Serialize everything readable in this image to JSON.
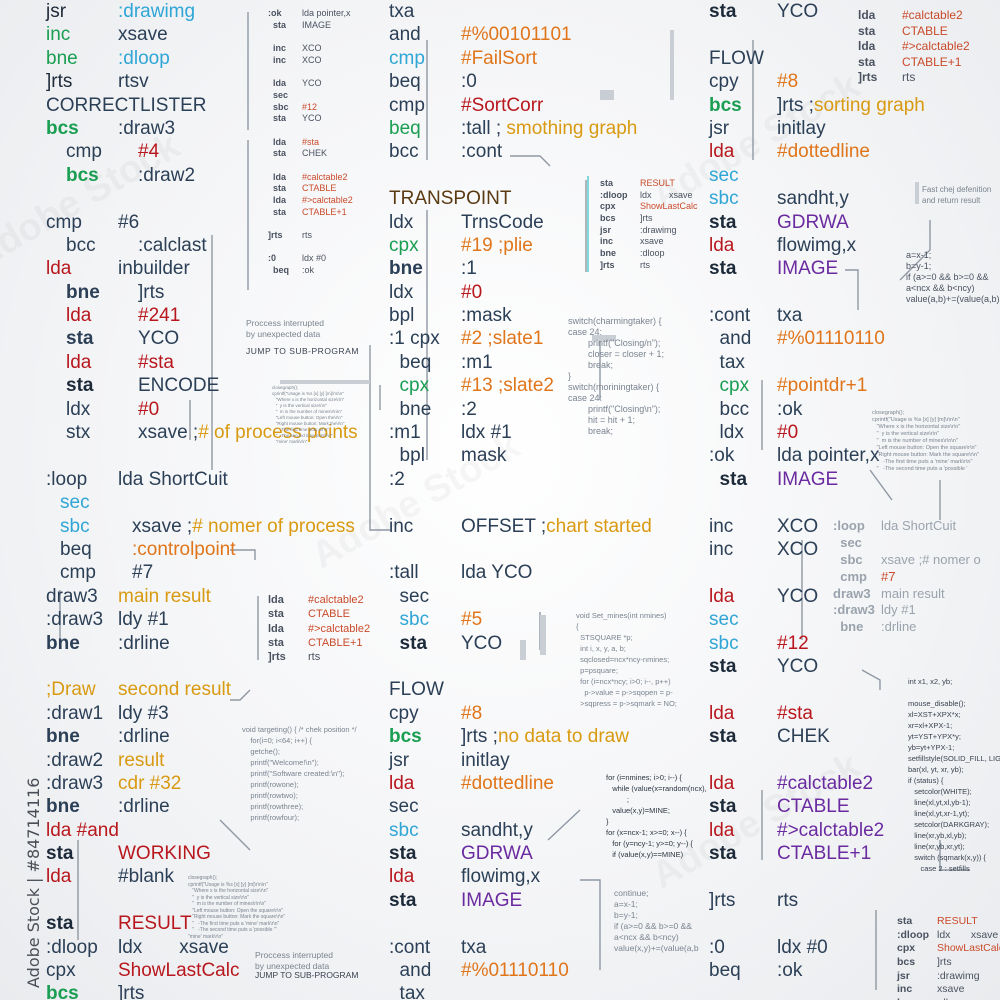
{
  "col1": [
    {
      "t": "jsr",
      "c": "c-dk",
      "v": ":drawimg",
      "vc": "c-cy",
      "i": ""
    },
    {
      "t": "inc",
      "c": "c-gr",
      "v": "xsave",
      "vc": "c-nv",
      "i": ""
    },
    {
      "t": "bne",
      "c": "c-gr",
      "v": ":dloop",
      "vc": "c-cy",
      "i": ""
    },
    {
      "t": "]rts",
      "c": "c-dk",
      "v": "rtsv",
      "vc": "c-nv",
      "i": ""
    },
    {
      "t": "CORRECTLISTER",
      "c": "c-nv",
      "v": "",
      "vc": "",
      "i": ""
    },
    {
      "t": "bcs",
      "c": "c-gr b",
      "v": ":draw3",
      "vc": "c-nv",
      "i": ""
    },
    {
      "t": "cmp",
      "c": "c-nv",
      "v": "#4",
      "vc": "c-rd",
      "i": "i1"
    },
    {
      "t": "bcs",
      "c": "c-gr b",
      "v": ":draw2",
      "vc": "c-nv",
      "i": "i1"
    },
    {
      "t": "",
      "c": "",
      "v": "",
      "vc": "",
      "i": ""
    },
    {
      "t": "cmp",
      "c": "c-nv",
      "v": "#6",
      "vc": "c-nv",
      "i": ""
    },
    {
      "t": "bcc",
      "c": "c-nv",
      "v": ":calclast",
      "vc": "c-nv",
      "i": "i1"
    },
    {
      "t": "lda",
      "c": "c-rd",
      "v": "inbuilder",
      "vc": "c-nv",
      "i": ""
    },
    {
      "t": "bne",
      "c": "c-nv b",
      "v": "]rts",
      "vc": "c-nv",
      "i": "i1"
    },
    {
      "t": "lda",
      "c": "c-rd",
      "v": "#241",
      "vc": "c-rd",
      "i": "i1"
    },
    {
      "t": "sta",
      "c": "c-nv b",
      "v": "YCO",
      "vc": "c-nv",
      "i": "i1"
    },
    {
      "t": "lda",
      "c": "c-rd",
      "v": "#sta",
      "vc": "c-rd",
      "i": "i1"
    },
    {
      "t": "sta",
      "c": "c-dk b",
      "v": "ENCODE",
      "vc": "c-nv",
      "i": "i1"
    },
    {
      "t": "ldx",
      "c": "c-nv",
      "v": "#0",
      "vc": "c-rd",
      "i": "i1"
    },
    {
      "t": "stx",
      "c": "c-nv",
      "v": "xsave ;# of process points",
      "vc": "c-nv",
      "hl": "# of process points",
      "i": "i1"
    },
    {
      "t": "",
      "c": "",
      "v": "",
      "vc": "",
      "i": ""
    },
    {
      "t": ":loop",
      "c": "c-nv",
      "v": "lda ShortCuit",
      "vc": "c-nv",
      "i": ""
    },
    {
      "t": "sec",
      "c": "c-cy",
      "v": "",
      "vc": "",
      "i": "i2"
    },
    {
      "t": "sbc",
      "c": "c-cy",
      "v": "xsave ;# nomer of process",
      "vc": "c-nv",
      "hl": "# nomer of process",
      "i": "i2"
    },
    {
      "t": "beq",
      "c": "c-nv",
      "v": ":controlpoint",
      "vc": "c-or",
      "i": "i2"
    },
    {
      "t": "cmp",
      "c": "c-nv",
      "v": "#7",
      "vc": "c-nv",
      "i": "i2"
    },
    {
      "t": "draw3",
      "c": "c-nv",
      "v": "main result",
      "vc": "c-ye",
      "i": ""
    },
    {
      "t": ":draw3",
      "c": "c-nv",
      "v": "ldy #1",
      "vc": "c-nv",
      "i": ""
    },
    {
      "t": "bne",
      "c": "c-nv b",
      "v": ":drline",
      "vc": "c-nv",
      "i": ""
    },
    {
      "t": "",
      "c": "",
      "v": "",
      "vc": "",
      "i": ""
    },
    {
      "t": ";Draw",
      "c": "c-ye",
      "v": "second result",
      "vc": "c-ye",
      "i": ""
    },
    {
      "t": ":draw1",
      "c": "c-nv",
      "v": "ldy #3",
      "vc": "c-nv",
      "i": ""
    },
    {
      "t": "bne",
      "c": "c-nv b",
      "v": ":drline",
      "vc": "c-nv",
      "i": ""
    },
    {
      "t": ":draw2",
      "c": "c-nv",
      "v": "result",
      "vc": "c-ye",
      "i": ""
    },
    {
      "t": ":draw3",
      "c": "c-nv",
      "v": "cdr #32",
      "vc": "c-ye",
      "i": ""
    },
    {
      "t": "bne",
      "c": "c-nv b",
      "v": ":drline",
      "vc": "c-nv",
      "i": ""
    },
    {
      "t": "lda #and",
      "c": "c-rd",
      "v": "",
      "vc": "",
      "i": ""
    },
    {
      "t": "sta",
      "c": "c-dk b",
      "v": "WORKING",
      "vc": "c-rd",
      "i": ""
    },
    {
      "t": "lda",
      "c": "c-rd",
      "v": "#blank",
      "vc": "c-nv",
      "i": ""
    },
    {
      "t": "",
      "c": "",
      "v": "",
      "vc": "",
      "i": ""
    },
    {
      "t": "sta",
      "c": "c-dk b",
      "v": "RESULT",
      "vc": "c-rd",
      "i": ""
    },
    {
      "t": ":dloop",
      "c": "c-nv",
      "v": "ldx       xsave",
      "vc": "c-nv",
      "i": ""
    },
    {
      "t": "cpx",
      "c": "c-nv",
      "v": "ShowLastCalc",
      "vc": "c-rd",
      "i": ""
    },
    {
      "t": "bcs",
      "c": "c-gr b",
      "v": "]rts",
      "vc": "c-nv",
      "i": ""
    }
  ],
  "col2": [
    {
      "t": "txa",
      "c": "c-nv",
      "v": "",
      "vc": ""
    },
    {
      "t": "and",
      "c": "c-nv",
      "v": "#%00101101",
      "vc": "c-or"
    },
    {
      "t": "cmp",
      "c": "c-cy",
      "v": "#FailSort",
      "vc": "c-or"
    },
    {
      "t": "beq",
      "c": "c-nv",
      "v": ":0",
      "vc": "c-nv"
    },
    {
      "t": "cmp",
      "c": "c-nv",
      "v": "#SortCorr",
      "vc": "c-rd"
    },
    {
      "t": "beq",
      "c": "c-gr",
      "v": ":tall ; smothing graph",
      "vc": "c-nv",
      "hl": "smothing graph"
    },
    {
      "t": "bcc",
      "c": "c-nv",
      "v": ":cont",
      "vc": "c-nv"
    },
    {
      "t": "",
      "c": "",
      "v": "",
      "vc": ""
    },
    {
      "t": "TRANSPOINT",
      "c": "c-br",
      "v": "",
      "vc": ""
    },
    {
      "t": "ldx",
      "c": "c-nv",
      "v": "TrnsCode",
      "vc": "c-nv"
    },
    {
      "t": "cpx",
      "c": "c-gr",
      "v": "#19 ;plie",
      "vc": "c-or"
    },
    {
      "t": "bne",
      "c": "c-nv b",
      "v": ":1",
      "vc": "c-nv"
    },
    {
      "t": "ldx",
      "c": "c-nv",
      "v": "#0",
      "vc": "c-rd"
    },
    {
      "t": "bpl",
      "c": "c-nv",
      "v": ":mask",
      "vc": "c-nv"
    },
    {
      "t": ":1 cpx",
      "c": "c-nv",
      "v": "#2 ;slate1",
      "vc": "c-or"
    },
    {
      "t": "  beq",
      "c": "c-nv",
      "v": ":m1",
      "vc": "c-nv"
    },
    {
      "t": "  cpx",
      "c": "c-gr",
      "v": "#13 ;slate2",
      "vc": "c-or"
    },
    {
      "t": "  bne",
      "c": "c-nv",
      "v": ":2",
      "vc": "c-nv"
    },
    {
      "t": ":m1",
      "c": "c-nv",
      "v": "ldx #1",
      "vc": "c-nv"
    },
    {
      "t": "  bpl",
      "c": "c-nv",
      "v": "mask",
      "vc": "c-nv"
    },
    {
      "t": ":2",
      "c": "c-nv",
      "v": "",
      "vc": ""
    },
    {
      "t": "",
      "c": "",
      "v": "",
      "vc": ""
    },
    {
      "t": "inc",
      "c": "c-nv",
      "v": "OFFSET ;chart started",
      "vc": "c-nv",
      "hl": "chart started"
    },
    {
      "t": "",
      "c": "",
      "v": "",
      "vc": ""
    },
    {
      "t": ":tall",
      "c": "c-nv",
      "v": "lda YCO",
      "vc": "c-nv"
    },
    {
      "t": "  sec",
      "c": "c-nv",
      "v": "",
      "vc": ""
    },
    {
      "t": "  sbc",
      "c": "c-cy",
      "v": "#5",
      "vc": "c-or"
    },
    {
      "t": "  sta",
      "c": "c-dk b",
      "v": "YCO",
      "vc": "c-nv"
    },
    {
      "t": "",
      "c": "",
      "v": "",
      "vc": ""
    },
    {
      "t": "FLOW",
      "c": "c-nv",
      "v": "",
      "vc": ""
    },
    {
      "t": "cpy",
      "c": "c-nv",
      "v": "#8",
      "vc": "c-or"
    },
    {
      "t": "bcs",
      "c": "c-gr b",
      "v": "]rts ;no data to draw",
      "vc": "c-nv",
      "hl": "no data to draw"
    },
    {
      "t": "jsr",
      "c": "c-nv",
      "v": "initlay",
      "vc": "c-nv"
    },
    {
      "t": "lda",
      "c": "c-rd",
      "v": "#dottedline",
      "vc": "c-or"
    },
    {
      "t": "sec",
      "c": "c-nv",
      "v": "",
      "vc": ""
    },
    {
      "t": "sbc",
      "c": "c-cy",
      "v": "sandht,y",
      "vc": "c-nv"
    },
    {
      "t": "sta",
      "c": "c-dk b",
      "v": "GDRWA",
      "vc": "c-pu"
    },
    {
      "t": "lda",
      "c": "c-rd",
      "v": "flowimg,x",
      "vc": "c-nv"
    },
    {
      "t": "sta",
      "c": "c-dk b",
      "v": "IMAGE",
      "vc": "c-pu"
    },
    {
      "t": "",
      "c": "",
      "v": "",
      "vc": ""
    },
    {
      "t": ":cont",
      "c": "c-nv",
      "v": "txa",
      "vc": "c-nv"
    },
    {
      "t": "  and",
      "c": "c-nv",
      "v": "#%01110110",
      "vc": "c-or"
    },
    {
      "t": "  tax",
      "c": "c-nv",
      "v": "",
      "vc": ""
    }
  ],
  "col3": [
    {
      "t": "sta",
      "c": "c-dk b",
      "v": "YCO",
      "vc": "c-nv"
    },
    {
      "t": "",
      "c": "",
      "v": "",
      "vc": ""
    },
    {
      "t": "FLOW",
      "c": "c-nv",
      "v": "",
      "vc": ""
    },
    {
      "t": "cpy",
      "c": "c-nv",
      "v": "#8",
      "vc": "c-or"
    },
    {
      "t": "bcs",
      "c": "c-gr b",
      "v": "]rts ;sorting graph",
      "vc": "c-nv",
      "hl": "sorting graph"
    },
    {
      "t": "jsr",
      "c": "c-nv",
      "v": "initlay",
      "vc": "c-nv"
    },
    {
      "t": "lda",
      "c": "c-rd",
      "v": "#dottedline",
      "vc": "c-or"
    },
    {
      "t": "sec",
      "c": "c-cy",
      "v": "",
      "vc": ""
    },
    {
      "t": "sbc",
      "c": "c-cy",
      "v": "sandht,y",
      "vc": "c-nv"
    },
    {
      "t": "sta",
      "c": "c-dk b",
      "v": "GDRWA",
      "vc": "c-pu"
    },
    {
      "t": "lda",
      "c": "c-rd",
      "v": "flowimg,x",
      "vc": "c-nv"
    },
    {
      "t": "sta",
      "c": "c-dk b",
      "v": "IMAGE",
      "vc": "c-pu"
    },
    {
      "t": "",
      "c": "",
      "v": "",
      "vc": ""
    },
    {
      "t": ":cont",
      "c": "c-nv",
      "v": "txa",
      "vc": "c-nv"
    },
    {
      "t": "  and",
      "c": "c-nv",
      "v": "#%01110110",
      "vc": "c-or"
    },
    {
      "t": "  tax",
      "c": "c-nv",
      "v": "",
      "vc": ""
    },
    {
      "t": "  cpx",
      "c": "c-gr",
      "v": "#pointdr+1",
      "vc": "c-or"
    },
    {
      "t": "  bcc",
      "c": "c-nv",
      "v": ":ok",
      "vc": "c-nv"
    },
    {
      "t": "  ldx",
      "c": "c-nv",
      "v": "#0",
      "vc": "c-rd"
    },
    {
      "t": ":ok",
      "c": "c-nv",
      "v": "lda pointer,x",
      "vc": "c-nv"
    },
    {
      "t": "  sta",
      "c": "c-dk b",
      "v": "IMAGE",
      "vc": "c-pu"
    },
    {
      "t": "",
      "c": "",
      "v": "",
      "vc": ""
    },
    {
      "t": "inc",
      "c": "c-nv",
      "v": "XCO",
      "vc": "c-nv"
    },
    {
      "t": "inc",
      "c": "c-nv",
      "v": "XCO",
      "vc": "c-nv"
    },
    {
      "t": "",
      "c": "",
      "v": "",
      "vc": ""
    },
    {
      "t": "lda",
      "c": "c-rd",
      "v": "YCO",
      "vc": "c-nv"
    },
    {
      "t": "sec",
      "c": "c-cy",
      "v": "",
      "vc": ""
    },
    {
      "t": "sbc",
      "c": "c-cy",
      "v": "#12",
      "vc": "c-rd"
    },
    {
      "t": "sta",
      "c": "c-dk b",
      "v": "YCO",
      "vc": "c-nv"
    },
    {
      "t": "",
      "c": "",
      "v": "",
      "vc": ""
    },
    {
      "t": "lda",
      "c": "c-rd",
      "v": "#sta",
      "vc": "c-rd"
    },
    {
      "t": "sta",
      "c": "c-dk b",
      "v": "CHEK",
      "vc": "c-nv"
    },
    {
      "t": "",
      "c": "",
      "v": "",
      "vc": ""
    },
    {
      "t": "lda",
      "c": "c-rd",
      "v": "#calctable2",
      "vc": "c-pu"
    },
    {
      "t": "sta",
      "c": "c-dk b",
      "v": "CTABLE",
      "vc": "c-pu"
    },
    {
      "t": "lda",
      "c": "c-rd",
      "v": "#>calctable2",
      "vc": "c-pu"
    },
    {
      "t": "sta",
      "c": "c-dk b",
      "v": "CTABLE+1",
      "vc": "c-pu"
    },
    {
      "t": "",
      "c": "",
      "v": "",
      "vc": ""
    },
    {
      "t": "]rts",
      "c": "c-nv",
      "v": "rts",
      "vc": "c-nv"
    },
    {
      "t": "",
      "c": "",
      "v": "",
      "vc": ""
    },
    {
      "t": ":0",
      "c": "c-nv",
      "v": "ldx #0",
      "vc": "c-nv"
    },
    {
      "t": "beq",
      "c": "c-nv",
      "v": ":ok",
      "vc": "c-nv"
    }
  ],
  "mini_top": [
    {
      "a": ":ok",
      "b": "lda pointer,x"
    },
    {
      "a": "  sta",
      "b": "IMAGE"
    },
    {
      "a": "",
      "b": ""
    },
    {
      "a": "  inc",
      "b": "XCO"
    },
    {
      "a": "  inc",
      "b": "XCO"
    },
    {
      "a": "",
      "b": ""
    },
    {
      "a": "  lda",
      "b": "YCO"
    },
    {
      "a": "  sec",
      "b": ""
    },
    {
      "a": "  sbc",
      "b": "#12"
    },
    {
      "a": "  sta",
      "b": "YCO"
    },
    {
      "a": "",
      "b": ""
    },
    {
      "a": "  lda",
      "b": "#sta"
    },
    {
      "a": "  sta",
      "b": "CHEK"
    },
    {
      "a": "",
      "b": ""
    },
    {
      "a": "  lda",
      "b": "#calctable2"
    },
    {
      "a": "  sta",
      "b": "CTABLE"
    },
    {
      "a": "  lda",
      "b": "#>calctable2"
    },
    {
      "a": "  sta",
      "b": "CTABLE+1"
    },
    {
      "a": "",
      "b": ""
    },
    {
      "a": "]rts",
      "b": "rts"
    },
    {
      "a": "",
      "b": ""
    },
    {
      "a": ":0",
      "b": "ldx #0"
    },
    {
      "a": "  beq",
      "b": ":ok"
    }
  ],
  "mini_topright": [
    {
      "a": "lda",
      "b": "#calctable2"
    },
    {
      "a": "sta",
      "b": "CTABLE"
    },
    {
      "a": "lda",
      "b": "#>calctable2"
    },
    {
      "a": "sta",
      "b": "CTABLE+1"
    },
    {
      "a": "]rts",
      "b": "rts"
    }
  ],
  "mini_mid": [
    {
      "a": "lda",
      "b": "#calctable2"
    },
    {
      "a": "sta",
      "b": "CTABLE"
    },
    {
      "a": "lda",
      "b": "#>calctable2"
    },
    {
      "a": "sta",
      "b": "CTABLE+1"
    },
    {
      "a": "]rts",
      "b": "rts"
    }
  ],
  "mini_cyan": [
    {
      "a": "sta",
      "b": "RESULT"
    },
    {
      "a": ":dloop",
      "b": "ldx       xsave"
    },
    {
      "a": "cpx",
      "b": "ShowLastCalc"
    },
    {
      "a": "bcs",
      "b": "]rts"
    },
    {
      "a": "jsr",
      "b": ":drawimg"
    },
    {
      "a": "inc",
      "b": "xsave"
    },
    {
      "a": "bne",
      "b": ":dloop"
    },
    {
      "a": "]rts",
      "b": "rts"
    }
  ],
  "mini_br": [
    {
      "a": "sta",
      "b": "RESULT"
    },
    {
      "a": ":dloop",
      "b": "ldx       xsave"
    },
    {
      "a": "cpx",
      "b": "ShowLastCalc"
    },
    {
      "a": "bcs",
      "b": "]rts"
    },
    {
      "a": "jsr",
      "b": ":drawimg"
    },
    {
      "a": "inc",
      "b": "xsave"
    },
    {
      "a": "bne",
      "b": ":dloop"
    },
    {
      "a": "]rts",
      "b": "rts"
    }
  ],
  "faded_loop": [
    {
      "a": ":loop",
      "b": "lda ShortCuit"
    },
    {
      "a": "  sec",
      "b": ""
    },
    {
      "a": "  sbc",
      "b": "xsave ;# nomer o"
    },
    {
      "a": "  cmp",
      "b": "#7"
    },
    {
      "a": "draw3",
      "b": "main result"
    },
    {
      "a": ":draw3",
      "b": "ldy #1"
    },
    {
      "a": "  bne",
      "b": ":drline"
    }
  ],
  "notes": {
    "interrupted1": "Proccess interrupted\nby unexpected data",
    "jump1": "JUMP TO SUB-PROGRAM",
    "interrupted2": "Proccess interrupted\nby unexpected data",
    "jump2": "JUMP TO SUB-PROGRAM",
    "fast": "Fast chej defenition\nand return result",
    "switch1": "switch(charmingtaker) {\ncase 24:\n        printf(\"Closing/n\");\n        closer = closer + 1;\n        break;\n}\nswitch(moriningtaker) {\ncase 24:\n        printf(\"Closing\\n\");\n        hit = hit + 1;\n        break;",
    "ab1": "a=x-1;\nb=y-1;\nif (a>=0 && b>=0 &&\na<ncx && b<ncy)\nvalue(a,b)+=(value(a,b)",
    "ab2": "continue;\na=x-1;\nb=y-1;\nif (a>=0 && b>=0 &&\na<ncx && b<ncy)\nvalue(x,y)+=(value(a,b",
    "voidmines": "void Set_mines(int nmines)\n{\n  STSQUARE *p;\n  int i, x, y, a, b;\n  sqclosed=ncx*ncy-nmines;\n  p=psquare;\n  for (i=ncx*ncy; i>0; i--, p++)\n    p->value = p->sqopen = p-\n  >sqpress = p->sqmark = NO;",
    "forloop": "for (i=nmines; i>0; i--) {\n   while (value(x=random(ncx),\n          ;\n   value(x,y)=MINE;\n}\nfor (x=ncx-1; x>=0; x--) {\n   for (y=ncy-1; y>=0; y--) {\n   if (value(x,y)==MINE)",
    "targeting": "void targeting() { /* chek position */\n    for(i=0; i<64; i++) {\n    getche();\n    printf(\"Welcome!\\n\");\n    printf(\"Software created:\\n\");\n    printf(rowone);\n    printf(rowtwo);\n    printf(rowthree);\n    printf(rowfour);",
    "mouse": "int x1, x2, yb;\n\nmouse_disable();\nxl=XST+XPX*x;\nxr=xl+XPX-1;\nyt=YST+YPX*y;\nyb=yt+YPX-1;\nsetfillstyle(SOLID_FILL, LIGH\nbar(xl, yt, xr, yb);\nif (status) {\n   setcolor(WHITE);\n   line(xl,yt,xl,yb-1);\n   line(xl,yt,xr-1,yt);\n   setcolor(DARKGRAY);\n   line(xr,yb,xl,yb);\n   line(xr,yb,xr,yt);\n   switch (sqmark(x,y)) {\n      case 2 : setfills",
    "closegraph1": "closegraph();\ncprintf(\"Usage is %s [x] [y] [m]\\r\\n\\n\"\n   \"Where x is the horizontal size\\r\\n\"\n   \"  y is the vertical size\\r\\n\"\n   \"  m is the number of mines\\r\\n\\n\"\n   \"Left mouse button: Open the square\\r\\n\"\n   \"Right mouse button: Mark the square\\r\\n\"\n   \"   -The first time puts a 'mine' mark\\r\\n\"\n   \"   -The second time puts a 'possible '",
    "closegraph2": "closegraph();\ncprintf(\"Usage is %s [x] [y] [m]\\r\\n\\n\"\n   \"Where x is the horizontal size\\r\\n\"\n   \"  y is the vertical size\\r\\n\"\n   \"  m is the number of mines\\r\\n\\n\"\n   \"Left mouse button: Open the\\r\\n\"\n   \"Right mouse button: Mark the\\r\\n\"\n   \"  -The first time puts a\\r\\n\"\n   \"  -The second time puts\\r\\n\"\n   \"mine' mark\\r\\n\"",
    "closegraph3": "closegraph();\ncprintf(\"Usage is %s [x] [y] [m]\\r\\n\\n\"\n   \"Where x is the horizontal size\\r\\n\"\n   \"  y is the vertical size\\r\\n\"\n   \"  m is the number of mines\\r\\n\\n\"\n   \"Left mouse button: Open the square\\r\\n\"\n   \"Right mouse button: Mark the square\\r\\n\"\n   \"   -The first time puts a 'mine' mark\\r\\n\"\n   \"   -The second time puts a 'possible '\"\n\"mine' mark\\r\\n\""
  },
  "watermark": "Adobe Stock | #84714116",
  "bg_watermark": "Adobe Stock"
}
